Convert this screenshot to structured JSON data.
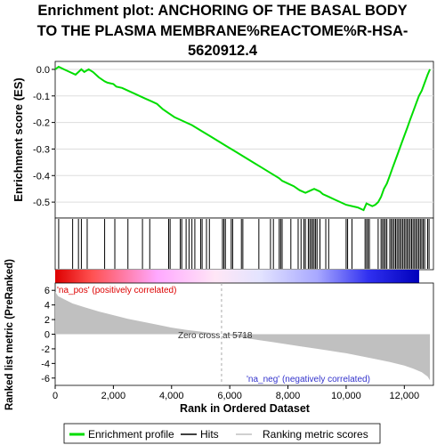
{
  "title_lines": [
    "Enrichment plot: ANCHORING OF THE BASAL BODY",
    "TO THE PLASMA MEMBRANE%REACTOME%R-HSA-",
    "5620912.4"
  ],
  "legend": {
    "items": [
      {
        "label": "Enrichment profile",
        "color": "#00dd00",
        "style": "line"
      },
      {
        "label": "Hits",
        "color": "#000000",
        "style": "line"
      },
      {
        "label": "Ranking metric scores",
        "color": "#c0c0c0",
        "style": "line"
      }
    ]
  },
  "annotations": {
    "pos_label": "'na_pos' (positively correlated)",
    "neg_label": "'na_neg' (negatively correlated)",
    "zero_cross": "Zero cross at 5718"
  },
  "colors": {
    "es_line": "#00dd00",
    "pos_label": "#dd0000",
    "neg_label": "#3333cc",
    "metric_fill": "#c0c0c0"
  },
  "chart_data": [
    {
      "type": "line",
      "name": "enrichment-score",
      "ylabel": "Enrichment score (ES)",
      "ylim": [
        -0.56,
        0.03
      ],
      "yticks": [
        0.0,
        -0.1,
        -0.2,
        -0.3,
        -0.4,
        -0.5
      ],
      "ytick_labels": [
        "0.0",
        "-0.1",
        "-0.2",
        "-0.3",
        "-0.4",
        "-0.5"
      ],
      "grid": true,
      "x": [
        0,
        120,
        300,
        500,
        700,
        800,
        900,
        1000,
        1150,
        1300,
        1500,
        1700,
        1800,
        2000,
        2100,
        2300,
        2500,
        2700,
        2900,
        3100,
        3300,
        3500,
        3700,
        3900,
        4100,
        4300,
        4500,
        4700,
        5000,
        5300,
        5600,
        5900,
        6200,
        6500,
        6800,
        7100,
        7400,
        7700,
        7800,
        8000,
        8200,
        8400,
        8500,
        8600,
        8700,
        8800,
        8900,
        9000,
        9100,
        9200,
        9400,
        9600,
        9800,
        10000,
        10200,
        10400,
        10600,
        10700,
        10800,
        10900,
        11000,
        11100,
        11200,
        11300,
        11400,
        11500,
        11600,
        11700,
        11800,
        11900,
        12000,
        12100,
        12200,
        12300,
        12400,
        12500,
        12600,
        12700,
        12800,
        12880
      ],
      "y": [
        0.0,
        0.01,
        0.0,
        -0.01,
        -0.02,
        -0.01,
        0.0,
        -0.01,
        0.0,
        -0.01,
        -0.03,
        -0.045,
        -0.05,
        -0.055,
        -0.065,
        -0.07,
        -0.08,
        -0.09,
        -0.1,
        -0.11,
        -0.12,
        -0.13,
        -0.15,
        -0.165,
        -0.18,
        -0.19,
        -0.2,
        -0.21,
        -0.23,
        -0.25,
        -0.27,
        -0.29,
        -0.31,
        -0.33,
        -0.35,
        -0.37,
        -0.39,
        -0.41,
        -0.42,
        -0.43,
        -0.44,
        -0.455,
        -0.46,
        -0.465,
        -0.46,
        -0.455,
        -0.45,
        -0.455,
        -0.46,
        -0.47,
        -0.48,
        -0.49,
        -0.5,
        -0.51,
        -0.515,
        -0.52,
        -0.53,
        -0.505,
        -0.51,
        -0.515,
        -0.51,
        -0.5,
        -0.48,
        -0.45,
        -0.43,
        -0.4,
        -0.37,
        -0.34,
        -0.31,
        -0.28,
        -0.25,
        -0.22,
        -0.19,
        -0.16,
        -0.13,
        -0.1,
        -0.08,
        -0.05,
        -0.02,
        0.0
      ]
    },
    {
      "type": "scatter",
      "name": "hits",
      "x": [
        120,
        600,
        800,
        900,
        1100,
        1700,
        2050,
        2500,
        3000,
        3250,
        3900,
        3950,
        4300,
        4350,
        4500,
        4600,
        4700,
        4800,
        5000,
        5050,
        5200,
        5300,
        5750,
        5800,
        5850,
        6050,
        6100,
        6400,
        6450,
        7000,
        7400,
        7500,
        7700,
        7750,
        7800,
        8100,
        8350,
        8450,
        8550,
        8600,
        8700,
        8750,
        8800,
        8850,
        8900,
        8950,
        9000,
        9100,
        9300,
        9400,
        10000,
        10050,
        10200,
        10650,
        10700,
        10750,
        10800,
        11100,
        11200,
        11250,
        11300,
        11350,
        11400,
        11500,
        11550,
        11600,
        11650,
        11700,
        11750,
        11800,
        11850,
        11900,
        11950,
        12000,
        12050,
        12100,
        12150,
        12200,
        12250,
        12300,
        12350,
        12400,
        12450,
        12500,
        12550,
        12600,
        12650,
        12700,
        12800,
        12850
      ]
    },
    {
      "type": "area",
      "name": "ranked-list-metric",
      "xlabel": "Rank in Ordered Dataset",
      "ylabel": "Ranked list metric (PreRanked)",
      "ylim": [
        -7,
        7
      ],
      "yticks": [
        6,
        4,
        2,
        0,
        -2,
        -4,
        -6
      ],
      "ytick_labels": [
        "6",
        "4",
        "2",
        "0",
        "-2",
        "-4",
        "-6"
      ],
      "xlim": [
        0,
        13000
      ],
      "xticks": [
        0,
        2000,
        4000,
        6000,
        8000,
        10000,
        12000
      ],
      "xtick_labels": [
        "0",
        "2,000",
        "4,000",
        "6,000",
        "8,000",
        "10,000",
        "12,000"
      ],
      "zero_cross": 5718,
      "x": [
        0,
        100,
        300,
        600,
        1000,
        1500,
        2000,
        2500,
        3000,
        3500,
        4000,
        4500,
        5000,
        5500,
        5718,
        6000,
        6500,
        7000,
        7500,
        8000,
        8500,
        9000,
        9500,
        10000,
        10500,
        11000,
        11500,
        12000,
        12300,
        12600,
        12800,
        12880
      ],
      "y": [
        5.8,
        5.2,
        4.8,
        4.2,
        3.7,
        3.1,
        2.6,
        2.1,
        1.7,
        1.3,
        0.9,
        0.6,
        0.35,
        0.1,
        0.0,
        -0.2,
        -0.5,
        -0.8,
        -1.1,
        -1.4,
        -1.7,
        -2.0,
        -2.3,
        -2.6,
        -3.0,
        -3.4,
        -3.8,
        -4.3,
        -4.7,
        -5.2,
        -5.8,
        -6.3
      ]
    }
  ]
}
